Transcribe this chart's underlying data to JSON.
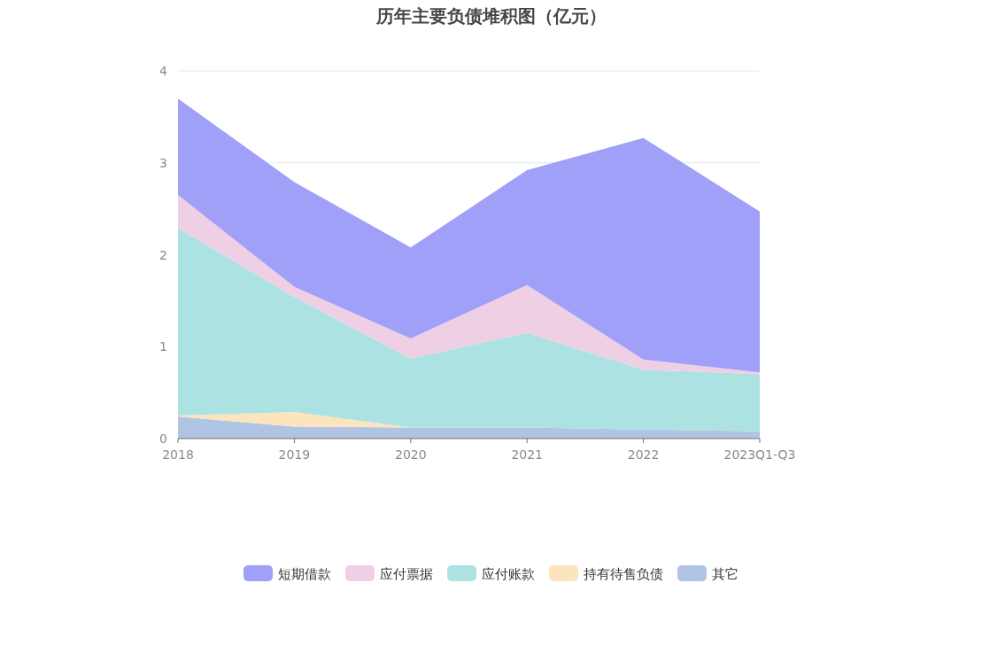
{
  "chart_data": {
    "type": "area",
    "title": "历年主要负债堆积图（亿元）",
    "stacked": true,
    "categories": [
      "2018",
      "2019",
      "2020",
      "2021",
      "2022",
      "2023Q1-Q3"
    ],
    "series": [
      {
        "name": "其它",
        "color": "#b0c4e4",
        "values": [
          0.24,
          0.13,
          0.12,
          0.12,
          0.1,
          0.08
        ]
      },
      {
        "name": "持有待售负债",
        "color": "#fce4be",
        "values": [
          0.01,
          0.16,
          0,
          0,
          0,
          0
        ]
      },
      {
        "name": "应付账款",
        "color": "#ace2e2",
        "values": [
          2.04,
          1.25,
          0.75,
          1.03,
          0.65,
          0.62
        ]
      },
      {
        "name": "应付票据",
        "color": "#eecfe4",
        "values": [
          0.36,
          0.11,
          0.22,
          0.52,
          0.11,
          0.02
        ]
      },
      {
        "name": "短期借款",
        "color": "#a0a0f8",
        "values": [
          1.05,
          1.14,
          0.99,
          1.25,
          2.41,
          1.75
        ]
      }
    ],
    "ylim": [
      0,
      4
    ],
    "yticks": [
      0,
      1,
      2,
      3,
      4
    ],
    "grid": "y",
    "legend": "bottom"
  }
}
